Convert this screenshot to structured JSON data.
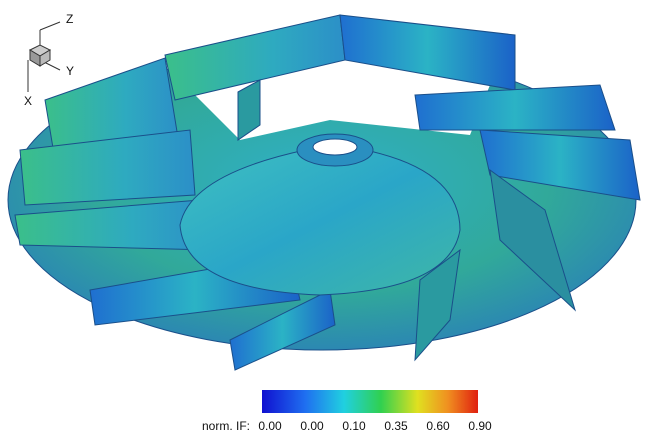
{
  "triad": {
    "z": "Z",
    "y": "Y",
    "x": "X"
  },
  "colorbar": {
    "label": "norm. IF:",
    "ticks": [
      "0.00",
      "0.00",
      "0.10",
      "0.35",
      "0.60",
      "0.90"
    ]
  }
}
